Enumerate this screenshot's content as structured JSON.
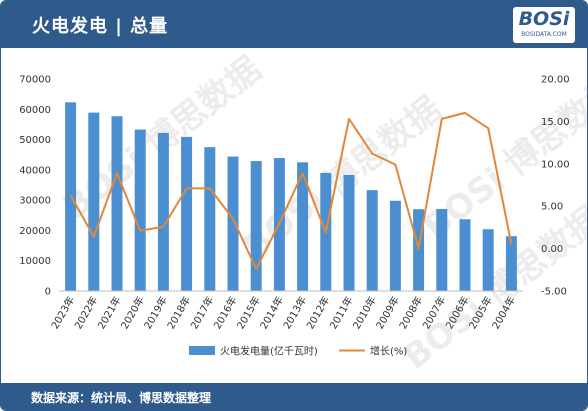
{
  "header": {
    "title": "火电发电 | 总量"
  },
  "logo": {
    "word": "BOSi",
    "url": "BOSIDATA.COM"
  },
  "footer": {
    "source": "数据来源：统计局、博思数据整理"
  },
  "colors": {
    "brand": "#2f5a8c",
    "bar": "#4c8fd0",
    "line": "#e0883a"
  },
  "chart_data": {
    "type": "bar",
    "categories": [
      "2023年",
      "2022年",
      "2021年",
      "2020年",
      "2019年",
      "2018年",
      "2017年",
      "2016年",
      "2015年",
      "2014年",
      "2013年",
      "2012年",
      "2011年",
      "2010年",
      "2009年",
      "2008年",
      "2007年",
      "2006年",
      "2005年",
      "2004年"
    ],
    "series": [
      {
        "name": "火电发电量(亿千瓦时)",
        "type": "bar",
        "axis": "left",
        "values": [
          62300,
          58900,
          57700,
          53300,
          52200,
          50900,
          47500,
          44400,
          42900,
          43900,
          42500,
          39000,
          38300,
          33300,
          29800,
          27000,
          27100,
          23700,
          20400,
          18100
        ]
      },
      {
        "name": "增长(%)",
        "type": "line",
        "axis": "right",
        "values": [
          6.3,
          1.4,
          8.9,
          2.1,
          2.6,
          7.1,
          7.1,
          3.5,
          -2.4,
          3.0,
          8.9,
          1.9,
          15.3,
          11.2,
          9.9,
          0.0,
          15.3,
          16.0,
          14.2,
          0.5
        ]
      }
    ],
    "y_left": {
      "min": 0,
      "max": 70000,
      "ticks": [
        "0",
        "10000",
        "20000",
        "30000",
        "40000",
        "50000",
        "60000",
        "70000"
      ]
    },
    "y_right": {
      "min": -5,
      "max": 20,
      "ticks": [
        "-5.00",
        "0.00",
        "5.00",
        "10.00",
        "15.00",
        "20.00"
      ]
    },
    "grid": false,
    "legend_position": "bottom"
  }
}
